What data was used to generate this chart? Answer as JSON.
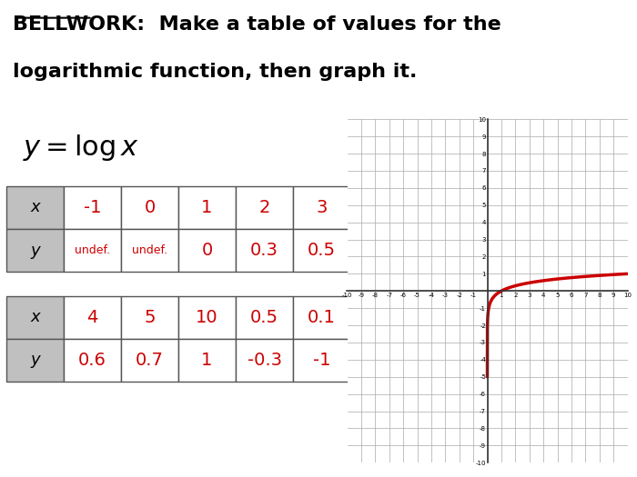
{
  "title_line1": "BELLWORK:  Make a table of values for the",
  "title_line2": "logarithmic function, then graph it.",
  "equation": "y = log x",
  "bg_color": "#ffffff",
  "green_line_color": "#00cc00",
  "table1_x_labels": [
    "x",
    "-1",
    "0",
    "1",
    "2",
    "3"
  ],
  "table1_y_labels": [
    "y",
    "undef.",
    "undef.",
    "0",
    "0.3",
    "0.5"
  ],
  "table2_x_labels": [
    "x",
    "4",
    "5",
    "10",
    "0.5",
    "0.1"
  ],
  "table2_y_labels": [
    "y",
    "0.6",
    "0.7",
    "1",
    "-0.3",
    "-1"
  ],
  "table_header_bg": "#c0c0c0",
  "table_cell_bg": "#ffffff",
  "table_border_color": "#555555",
  "red_color": "#cc0000",
  "black_color": "#000000",
  "graph_xlim": [
    -10,
    10
  ],
  "graph_ylim": [
    -10,
    10
  ],
  "graph_grid_color": "#aaaaaa",
  "graph_axis_color": "#333333",
  "curve_color": "#cc0000",
  "curve_linewidth": 2.5
}
